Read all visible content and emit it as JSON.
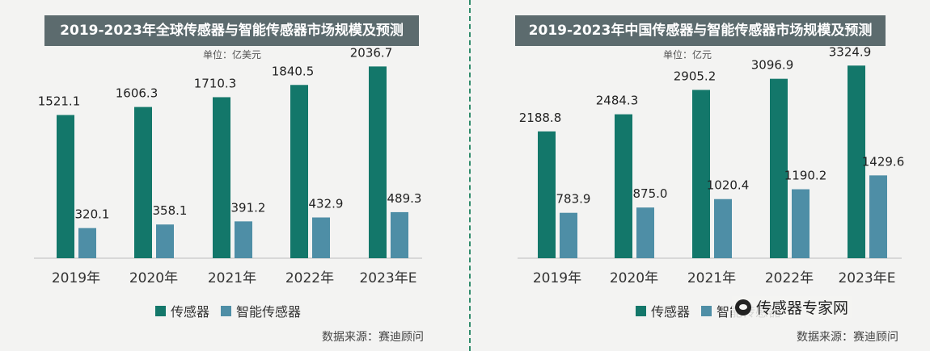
{
  "colors": {
    "sensor": "#13776a",
    "smart": "#4e8ea6",
    "title_bg": "#5c6b6e"
  },
  "left": {
    "title": "2019-2023年全球传感器与智能传感器市场规模及预测",
    "unit": "单位：亿美元",
    "source": "数据来源：赛迪顾问"
  },
  "right": {
    "title": "2019-2023年中国传感器与智能传感器市场规模及预测",
    "unit": "单位：亿元",
    "source": "数据来源：赛迪顾问"
  },
  "legend": {
    "sensor": "传感器",
    "smart": "智能传感器"
  },
  "watermark": {
    "text": "传感器专家网",
    "icon": "wechat-icon"
  },
  "chart_data": [
    {
      "type": "bar",
      "title": "2019-2023年全球传感器与智能传感器市场规模及预测",
      "unit": "单位：亿美元",
      "categories": [
        "2019年",
        "2020年",
        "2021年",
        "2022年",
        "2023年E"
      ],
      "series": [
        {
          "name": "传感器",
          "values": [
            1521.1,
            1606.3,
            1710.3,
            1840.5,
            2036.7
          ]
        },
        {
          "name": "智能传感器",
          "values": [
            320.1,
            358.1,
            391.2,
            432.9,
            489.3
          ]
        }
      ],
      "ylim": [
        0,
        2400
      ],
      "grid": false,
      "legend_position": "bottom"
    },
    {
      "type": "bar",
      "title": "2019-2023年中国传感器与智能传感器市场规模及预测",
      "unit": "单位：亿元",
      "categories": [
        "2019年",
        "2020年",
        "2021年",
        "2022年",
        "2023年E"
      ],
      "series": [
        {
          "name": "传感器",
          "values": [
            2188.8,
            2484.3,
            2905.2,
            3096.9,
            3324.9
          ]
        },
        {
          "name": "智能传感器",
          "values": [
            783.9,
            875.0,
            1020.4,
            1190.2,
            1429.6
          ]
        }
      ],
      "ylim": [
        0,
        3900
      ],
      "grid": false,
      "legend_position": "bottom"
    }
  ]
}
